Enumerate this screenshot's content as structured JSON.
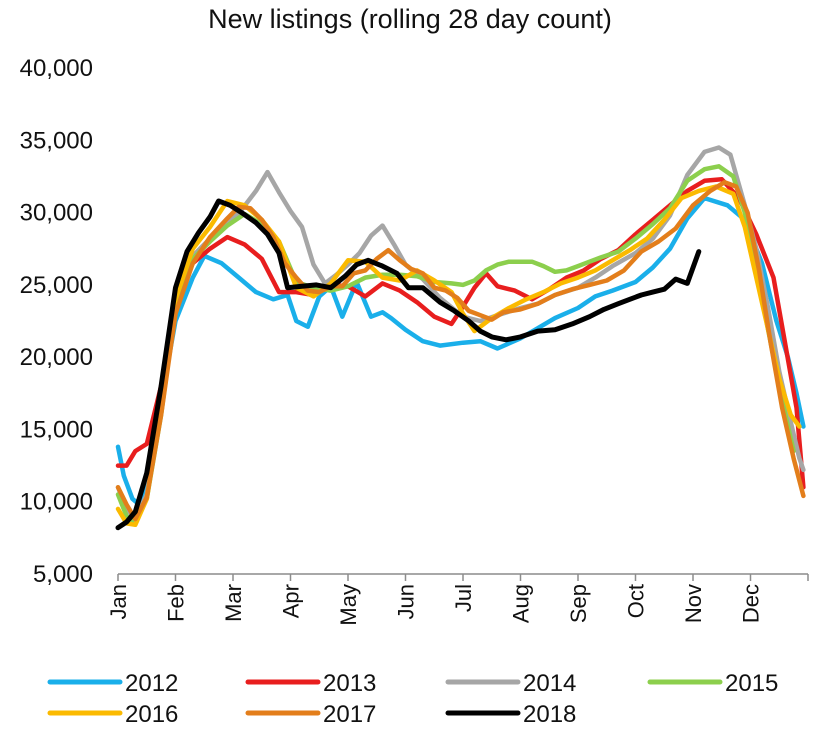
{
  "chart_data": {
    "type": "line",
    "title": "New listings (rolling 28 day count)",
    "xlabel": "",
    "ylabel": "",
    "ylim": [
      5000,
      40000
    ],
    "yticks": [
      5000,
      10000,
      15000,
      20000,
      25000,
      30000,
      35000,
      40000
    ],
    "ytick_labels": [
      "5,000",
      "10,000",
      "15,000",
      "20,000",
      "25,000",
      "30,000",
      "35,000",
      "40,000"
    ],
    "xlim": [
      0,
      12
    ],
    "categories": [
      "Jan",
      "Feb",
      "Mar",
      "Apr",
      "May",
      "Jun",
      "Jul",
      "Aug",
      "Sep",
      "Oct",
      "Nov",
      "Dec"
    ],
    "grid": false,
    "legend_position": "bottom",
    "series": [
      {
        "name": "2012",
        "color": "#1AAFEA",
        "x": [
          0,
          0.1,
          0.25,
          0.4,
          0.55,
          0.75,
          1,
          1.3,
          1.5,
          1.8,
          2.1,
          2.4,
          2.7,
          2.95,
          3.1,
          3.3,
          3.5,
          3.7,
          3.9,
          4.15,
          4.4,
          4.6,
          4.75,
          5,
          5.3,
          5.6,
          6,
          6.3,
          6.6,
          7,
          7.3,
          7.6,
          8,
          8.3,
          8.6,
          9,
          9.3,
          9.6,
          9.9,
          10.2,
          10.6,
          10.9,
          11.2,
          11.45,
          11.65,
          11.8,
          11.92
        ],
        "values": [
          13800,
          11800,
          10200,
          9700,
          12000,
          17000,
          22500,
          25500,
          27000,
          26500,
          25500,
          24500,
          24000,
          24300,
          22500,
          22100,
          24200,
          24900,
          22800,
          25200,
          22800,
          23100,
          22700,
          21900,
          21100,
          20800,
          21000,
          21100,
          20600,
          21300,
          22000,
          22700,
          23400,
          24200,
          24600,
          25200,
          26200,
          27500,
          29600,
          31000,
          30500,
          29500,
          26500,
          22500,
          20000,
          17500,
          15200
        ]
      },
      {
        "name": "2013",
        "color": "#E81E1E",
        "x": [
          0,
          0.15,
          0.3,
          0.5,
          0.75,
          1,
          1.3,
          1.6,
          1.9,
          2.2,
          2.5,
          2.8,
          3.1,
          3.4,
          3.7,
          4,
          4.3,
          4.6,
          4.9,
          5.2,
          5.5,
          5.8,
          6,
          6.2,
          6.4,
          6.6,
          6.9,
          7.2,
          7.5,
          7.8,
          8.1,
          8.4,
          8.7,
          9,
          9.3,
          9.6,
          9.9,
          10.2,
          10.5,
          10.8,
          11.1,
          11.4,
          11.6,
          11.8,
          11.92
        ],
        "values": [
          12500,
          12500,
          13500,
          14000,
          18000,
          24000,
          26500,
          27500,
          28300,
          27800,
          26800,
          24500,
          24500,
          24300,
          25000,
          24900,
          24200,
          25100,
          24600,
          23800,
          22800,
          22300,
          23500,
          24800,
          25800,
          24900,
          24600,
          24000,
          24700,
          25500,
          26000,
          26800,
          27400,
          28500,
          29500,
          30500,
          31500,
          32200,
          32300,
          31000,
          28500,
          25500,
          21000,
          16500,
          11000
        ]
      },
      {
        "name": "2014",
        "color": "#A6A6A6",
        "x": [
          0,
          0.15,
          0.3,
          0.5,
          0.75,
          1,
          1.3,
          1.6,
          1.9,
          2.15,
          2.4,
          2.6,
          2.8,
          3,
          3.2,
          3.4,
          3.6,
          3.8,
          4,
          4.2,
          4.4,
          4.6,
          4.8,
          5,
          5.3,
          5.6,
          6,
          6.3,
          6.6,
          7,
          7.3,
          7.6,
          8,
          8.3,
          8.6,
          9,
          9.3,
          9.6,
          9.9,
          10.2,
          10.45,
          10.65,
          10.9,
          11.1,
          11.3,
          11.5,
          11.7,
          11.85,
          11.92
        ],
        "values": [
          11000,
          9500,
          8800,
          10500,
          16500,
          23500,
          27000,
          28200,
          29200,
          30200,
          31500,
          32800,
          31400,
          30100,
          29000,
          26400,
          25100,
          25700,
          26400,
          27200,
          28400,
          29100,
          27800,
          26400,
          25400,
          24100,
          22800,
          22500,
          22900,
          23400,
          23700,
          24300,
          24800,
          25500,
          26300,
          27200,
          28200,
          29800,
          32600,
          34200,
          34500,
          34000,
          30500,
          27500,
          23500,
          19000,
          15500,
          13000,
          12200
        ]
      },
      {
        "name": "2015",
        "color": "#8CCF4D",
        "x": [
          0,
          0.15,
          0.3,
          0.5,
          0.75,
          1,
          1.3,
          1.6,
          1.9,
          2.2,
          2.5,
          2.8,
          3.1,
          3.4,
          3.7,
          4,
          4.3,
          4.6,
          4.9,
          5.2,
          5.5,
          5.8,
          6,
          6.2,
          6.4,
          6.6,
          6.8,
          7,
          7.2,
          7.4,
          7.6,
          7.8,
          8,
          8.2,
          8.4,
          8.7,
          9,
          9.3,
          9.6,
          9.9,
          10.2,
          10.45,
          10.7,
          10.9,
          11.1,
          11.3,
          11.55,
          11.75
        ],
        "values": [
          10500,
          9000,
          8600,
          10200,
          16000,
          23500,
          26800,
          28000,
          29100,
          29900,
          29200,
          28000,
          25200,
          24800,
          24600,
          24900,
          25500,
          25700,
          25700,
          25600,
          25200,
          25100,
          25000,
          25300,
          26000,
          26400,
          26600,
          26600,
          26600,
          26300,
          25900,
          26000,
          26300,
          26600,
          26900,
          27300,
          28200,
          29200,
          30300,
          32200,
          33000,
          33200,
          32500,
          30000,
          26500,
          22000,
          17000,
          13500
        ]
      },
      {
        "name": "2016",
        "color": "#FBBA00",
        "x": [
          0,
          0.15,
          0.3,
          0.5,
          0.75,
          1,
          1.3,
          1.6,
          1.9,
          2.2,
          2.5,
          2.8,
          3.1,
          3.4,
          3.7,
          4,
          4.3,
          4.6,
          4.9,
          5.2,
          5.5,
          5.8,
          6,
          6.2,
          6.5,
          6.8,
          7.1,
          7.4,
          7.7,
          8,
          8.3,
          8.6,
          8.9,
          9.2,
          9.5,
          9.8,
          10.1,
          10.4,
          10.7,
          10.9,
          11.1,
          11.3,
          11.5,
          11.7,
          11.85
        ],
        "values": [
          9500,
          8500,
          8400,
          10200,
          16500,
          24000,
          27500,
          29000,
          30800,
          30500,
          29500,
          28000,
          24800,
          24200,
          25100,
          26700,
          26600,
          25500,
          25300,
          26000,
          25300,
          24500,
          23000,
          21800,
          22700,
          23400,
          24000,
          24500,
          25100,
          25500,
          26000,
          26700,
          27400,
          28200,
          29500,
          31000,
          31500,
          31800,
          31300,
          29000,
          25500,
          22000,
          18500,
          16000,
          15200
        ]
      },
      {
        "name": "2017",
        "color": "#E37E1B",
        "x": [
          0,
          0.15,
          0.3,
          0.5,
          0.75,
          1,
          1.3,
          1.6,
          1.9,
          2.1,
          2.3,
          2.5,
          2.7,
          2.9,
          3.1,
          3.3,
          3.5,
          3.7,
          3.9,
          4.1,
          4.3,
          4.5,
          4.7,
          4.9,
          5.1,
          5.3,
          5.5,
          5.7,
          5.9,
          6.1,
          6.3,
          6.5,
          6.7,
          7,
          7.3,
          7.6,
          7.9,
          8.2,
          8.5,
          8.8,
          9.1,
          9.4,
          9.7,
          10,
          10.3,
          10.55,
          10.75,
          10.95,
          11.15,
          11.35,
          11.55,
          11.75,
          11.92
        ],
        "values": [
          11000,
          9800,
          8800,
          10300,
          16000,
          23000,
          26500,
          28300,
          29600,
          30400,
          30300,
          29500,
          28300,
          26500,
          25500,
          24600,
          24500,
          24900,
          24900,
          25800,
          26000,
          26800,
          27400,
          26700,
          26100,
          25800,
          24800,
          24600,
          24100,
          23200,
          22900,
          22600,
          23100,
          23300,
          23700,
          24300,
          24700,
          25000,
          25300,
          26000,
          27300,
          28000,
          28900,
          30500,
          31500,
          32100,
          31800,
          30000,
          26000,
          21000,
          16500,
          13000,
          10400
        ]
      },
      {
        "name": "2018",
        "color": "#000000",
        "x": [
          0,
          0.15,
          0.3,
          0.5,
          0.75,
          1,
          1.2,
          1.4,
          1.6,
          1.75,
          1.95,
          2.15,
          2.4,
          2.6,
          2.8,
          2.95,
          3.2,
          3.45,
          3.7,
          3.95,
          4.15,
          4.35,
          4.6,
          4.85,
          5.05,
          5.3,
          5.6,
          5.85,
          6.1,
          6.3,
          6.5,
          6.75,
          7,
          7.3,
          7.6,
          7.9,
          8.2,
          8.45,
          8.7,
          8.9,
          9.1,
          9.3,
          9.5,
          9.7,
          9.9,
          10.1
        ],
        "values": [
          8200,
          8600,
          9300,
          12000,
          18000,
          24800,
          27300,
          28600,
          29700,
          30800,
          30500,
          30000,
          29300,
          28500,
          27200,
          24800,
          24900,
          25000,
          24800,
          25600,
          26400,
          26700,
          26300,
          25800,
          24800,
          24800,
          23800,
          23200,
          22500,
          21800,
          21400,
          21200,
          21400,
          21800,
          21900,
          22300,
          22800,
          23300,
          23700,
          24000,
          24300,
          24500,
          24700,
          25400,
          25100,
          27300
        ]
      }
    ]
  }
}
